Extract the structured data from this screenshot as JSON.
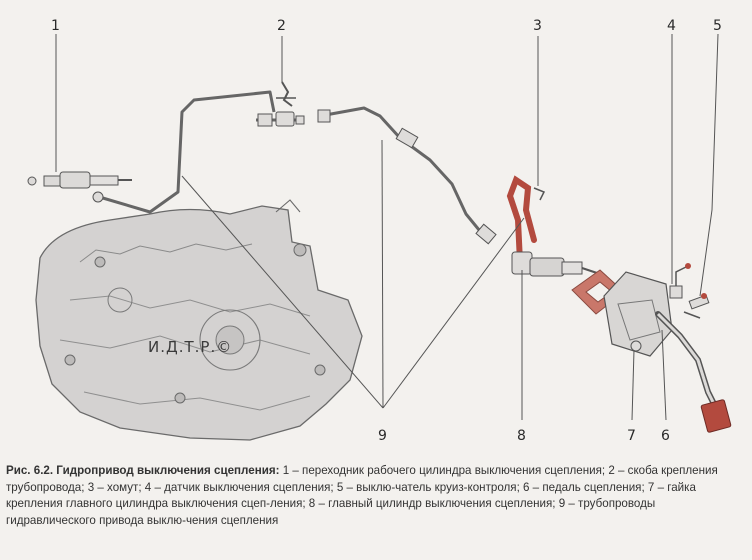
{
  "diagram": {
    "callouts": [
      {
        "id": "1",
        "label": "1"
      },
      {
        "id": "2",
        "label": "2"
      },
      {
        "id": "3",
        "label": "3"
      },
      {
        "id": "4",
        "label": "4"
      },
      {
        "id": "5",
        "label": "5"
      },
      {
        "id": "6",
        "label": "6"
      },
      {
        "id": "7",
        "label": "7"
      },
      {
        "id": "8",
        "label": "8"
      },
      {
        "id": "9",
        "label": "9"
      }
    ],
    "watermark": "И.Д.Т.Р.©",
    "colors": {
      "line": "#555555",
      "pipe_red": "#b34a3e",
      "gasket": "#c9776a",
      "housing_fill": "#d2d0cf"
    }
  },
  "caption": {
    "title": "Рис. 6.2. Гидропривод выключения сцепления:",
    "body": " 1 – переходник рабочего цилиндра выключения сцепления; 2 – скоба крепления трубопровода; 3 – хомут; 4 – датчик выключения сцепления; 5 – выклю-чатель круиз-контроля; 6 – педаль сцепления; 7 – гайка крепления главного цилиндра выключения сцеп-ления; 8 – главный цилиндр выключения сцепления; 9 – трубопроводы гидравлического привода выклю-чения сцепления"
  }
}
